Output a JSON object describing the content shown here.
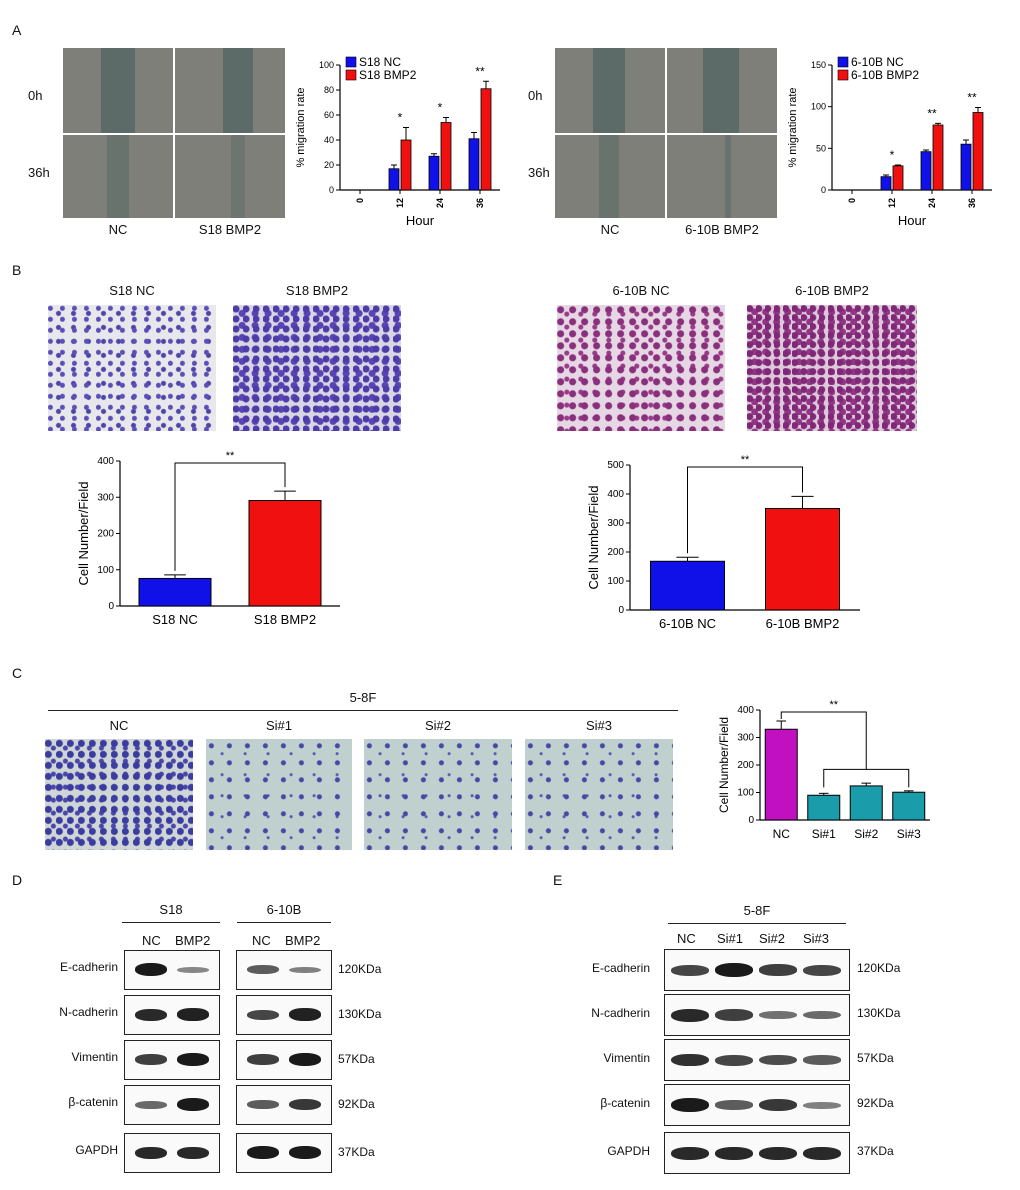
{
  "panel_labels": {
    "a": "A",
    "b": "B",
    "c": "C",
    "d": "D",
    "e": "E"
  },
  "panelA": {
    "left": {
      "row_labels": [
        "0h",
        "36h"
      ],
      "col_labels": [
        "NC",
        "S18 BMP2"
      ]
    },
    "right": {
      "row_labels": [
        "0h",
        "36h"
      ],
      "col_labels": [
        "NC",
        "6-10B BMP2"
      ]
    }
  },
  "panelB": {
    "left": {
      "image_labels": [
        "S18 NC",
        "S18 BMP2"
      ],
      "sig": "**"
    },
    "right": {
      "image_labels": [
        "6-10B NC",
        "6-10B BMP2"
      ],
      "sig": "**"
    }
  },
  "panelC": {
    "group_title": "5-8F",
    "image_labels": [
      "NC",
      "Si#1",
      "Si#2",
      "Si#3"
    ],
    "sig": "**"
  },
  "panelD": {
    "groups": [
      "S18",
      "6-10B"
    ],
    "lane_labels": [
      "NC",
      "BMP2"
    ],
    "proteins": [
      "E-cadherin",
      "N-cadherin",
      "Vimentin",
      "β-catenin",
      "GAPDH"
    ],
    "sizes": [
      "120KDa",
      "130KDa",
      "57KDa",
      "92KDa",
      "37KDa"
    ]
  },
  "panelE": {
    "group": "5-8F",
    "lane_labels": [
      "NC",
      "Si#1",
      "Si#2",
      "Si#3"
    ],
    "proteins": [
      "E-cadherin",
      "N-cadherin",
      "Vimentin",
      "β-catenin",
      "GAPDH"
    ],
    "sizes": [
      "120KDa",
      "130KDa",
      "57KDa",
      "92KDa",
      "37KDa"
    ]
  },
  "colors": {
    "blue": "#1010e8",
    "red": "#f01010",
    "magenta": "#c010c0",
    "teal": "#1a9cab"
  },
  "chart_data": [
    {
      "id": "a1",
      "type": "bar",
      "xlabel": "Hour",
      "ylabel": "% migration rate",
      "categories": [
        "0",
        "12",
        "24",
        "36"
      ],
      "ylim": [
        0,
        100
      ],
      "yticks": [
        0,
        20,
        40,
        60,
        80,
        100
      ],
      "series": [
        {
          "name": "S18 NC",
          "values": [
            0,
            17,
            27,
            41
          ],
          "errors": [
            0,
            3,
            2,
            5
          ]
        },
        {
          "name": "S18 BMP2",
          "values": [
            0,
            40,
            54,
            81
          ],
          "errors": [
            0,
            10,
            4,
            6
          ]
        }
      ],
      "annotations": [
        "",
        "*",
        "*",
        "**"
      ]
    },
    {
      "id": "a2",
      "type": "bar",
      "xlabel": "Hour",
      "ylabel": "% migration rate",
      "categories": [
        "0",
        "12",
        "24",
        "36"
      ],
      "ylim": [
        0,
        150
      ],
      "yticks": [
        0,
        50,
        100,
        150
      ],
      "series": [
        {
          "name": "6-10B NC",
          "values": [
            0,
            16,
            46,
            55
          ],
          "errors": [
            0,
            2,
            2,
            5
          ]
        },
        {
          "name": "6-10B BMP2",
          "values": [
            0,
            29,
            78,
            93
          ],
          "errors": [
            0,
            1,
            2,
            6
          ]
        }
      ],
      "annotations": [
        "",
        "*",
        "**",
        "**"
      ]
    },
    {
      "id": "b1",
      "type": "bar",
      "ylabel": "Cell Number/Field",
      "categories": [
        "S18 NC",
        "S18 BMP2"
      ],
      "values": [
        76,
        291
      ],
      "errors": [
        10,
        26
      ],
      "ylim": [
        0,
        400
      ],
      "yticks": [
        0,
        100,
        200,
        300,
        400
      ],
      "sig": "**"
    },
    {
      "id": "b2",
      "type": "bar",
      "ylabel": "Cell Number/Field",
      "categories": [
        "6-10B NC",
        "6-10B BMP2"
      ],
      "values": [
        168,
        350
      ],
      "errors": [
        14,
        42
      ],
      "ylim": [
        0,
        500
      ],
      "yticks": [
        0,
        100,
        200,
        300,
        400,
        500
      ],
      "sig": "**"
    },
    {
      "id": "c",
      "type": "bar",
      "ylabel": "Cell Number/Field",
      "categories": [
        "NC",
        "Si#1",
        "Si#2",
        "Si#3"
      ],
      "values": [
        330,
        90,
        124,
        101
      ],
      "errors": [
        30,
        7,
        10,
        5
      ],
      "ylim": [
        0,
        400
      ],
      "yticks": [
        0,
        100,
        200,
        300,
        400
      ],
      "sig": "**"
    }
  ]
}
